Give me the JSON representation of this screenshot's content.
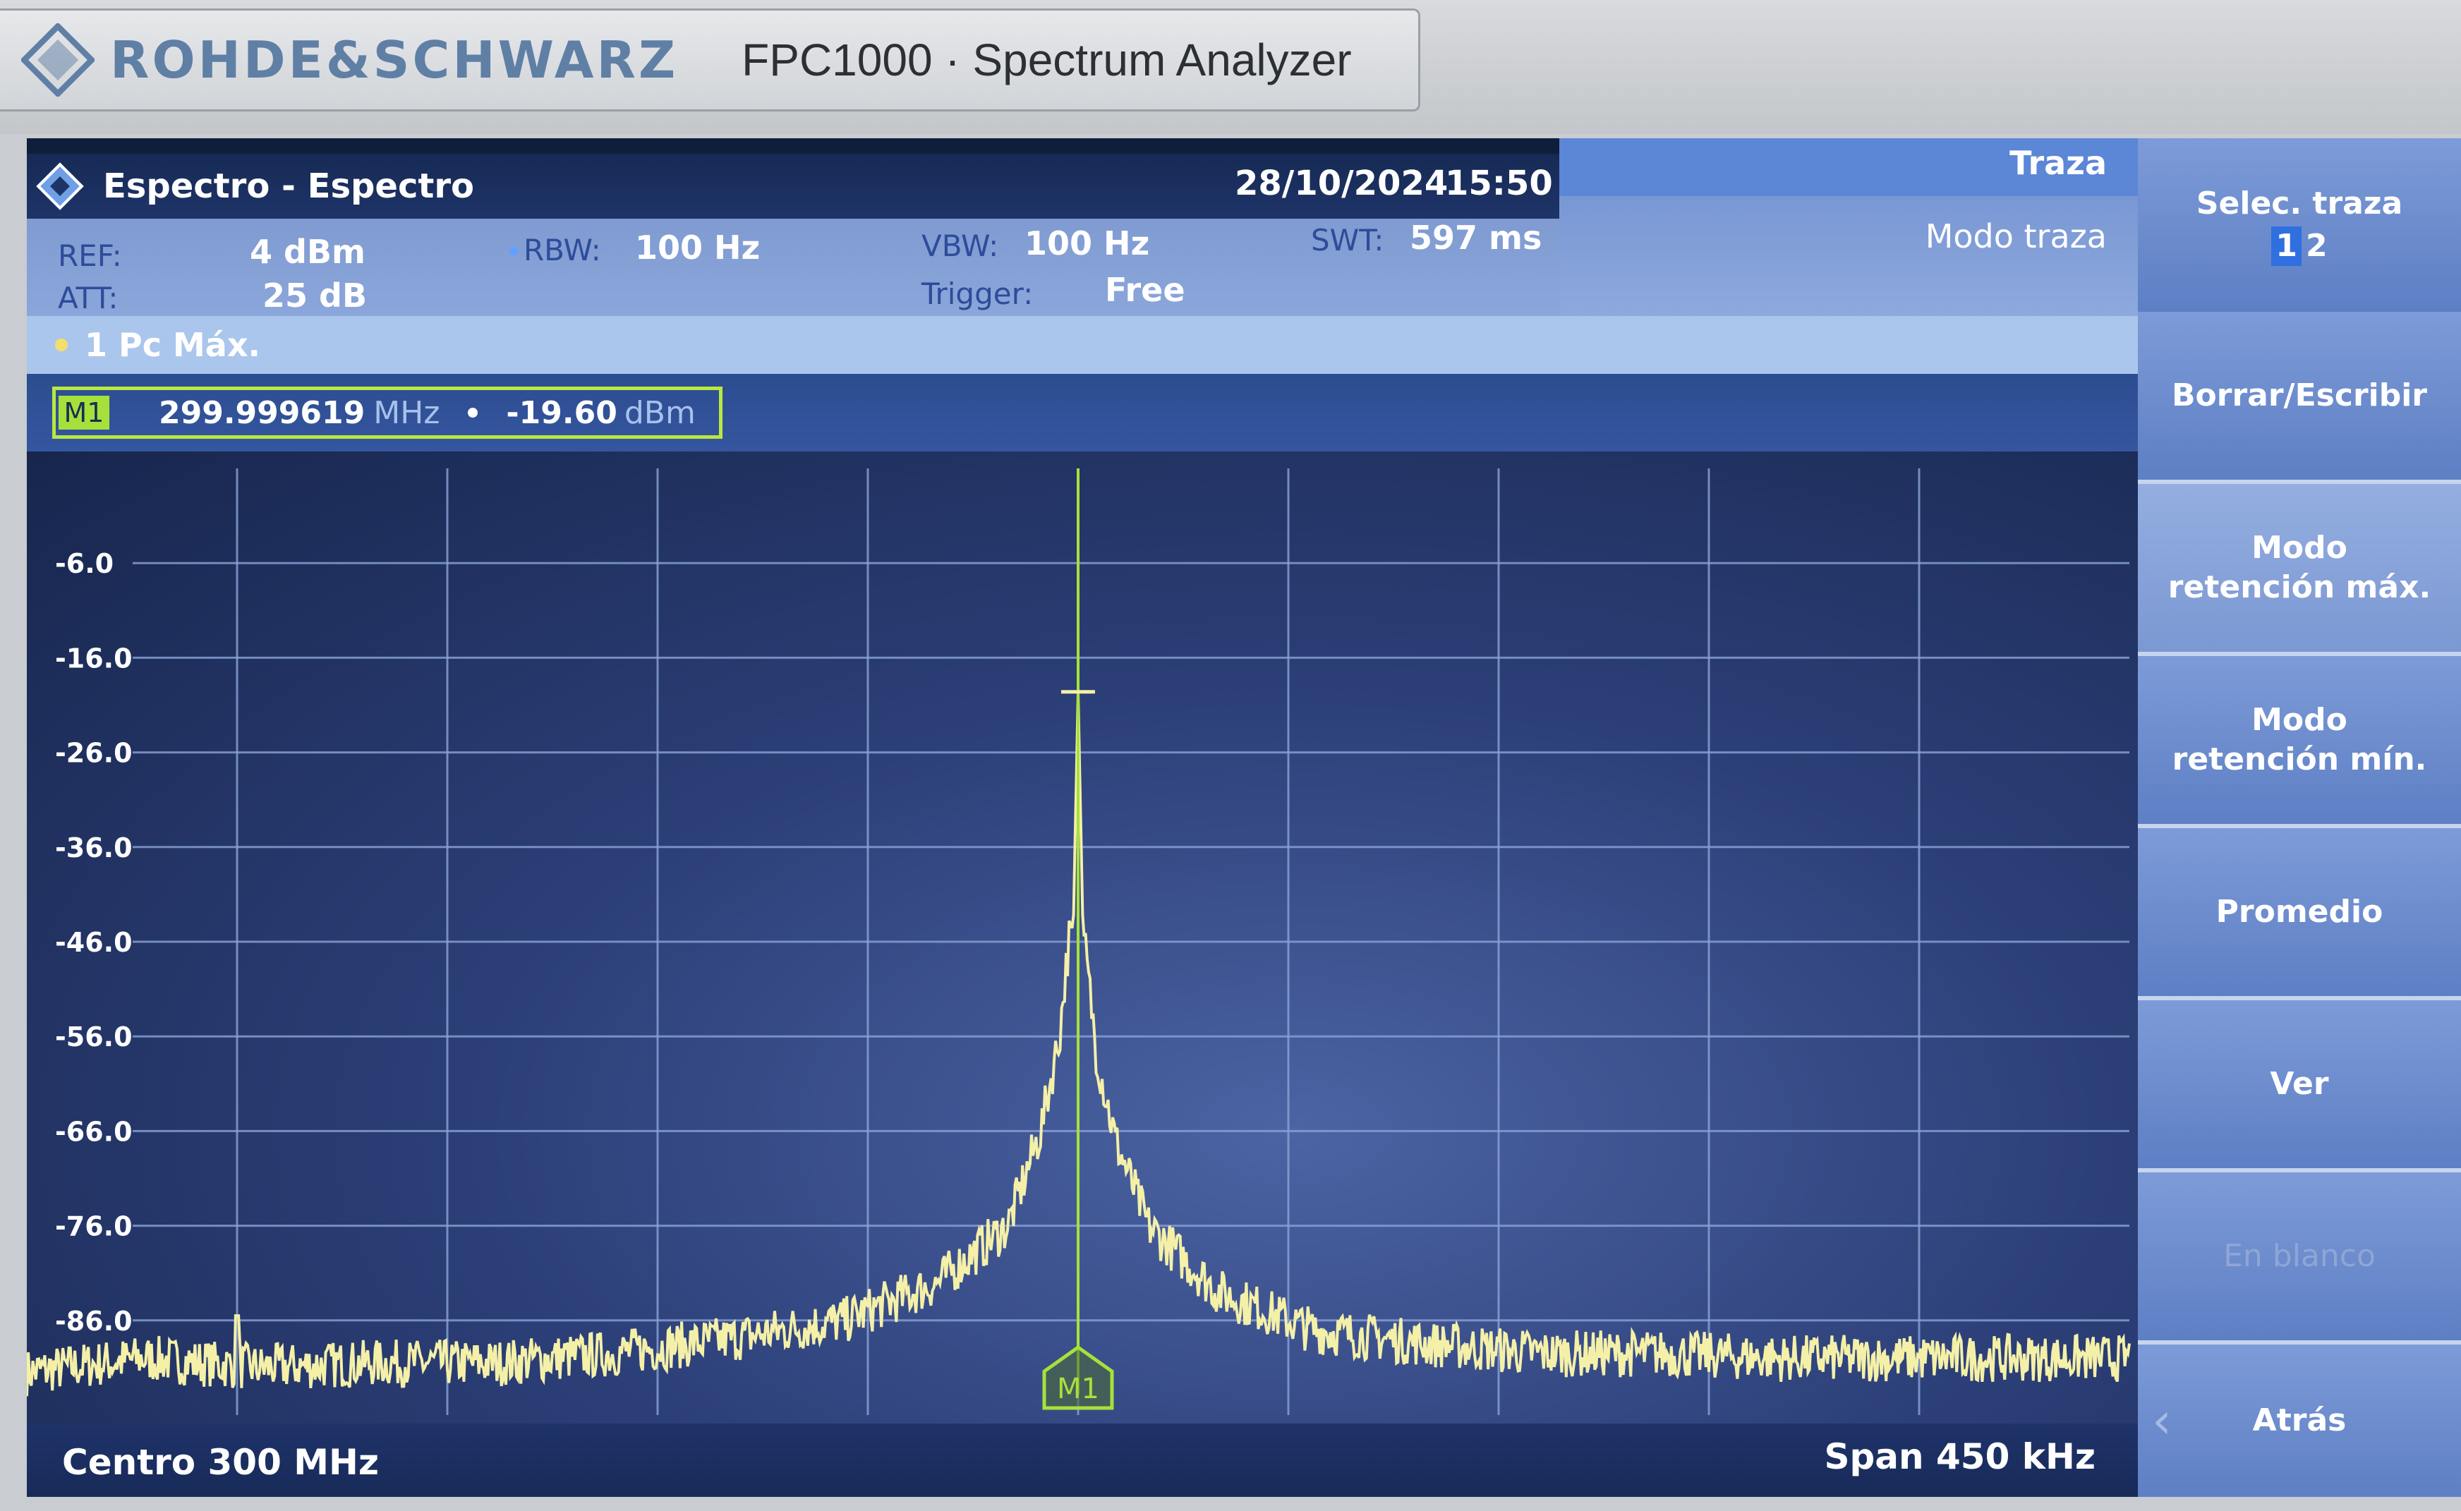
{
  "bezel": {
    "brand": "ROHDE&SCHWARZ",
    "model": "FPC1000 · Spectrum Analyzer"
  },
  "header": {
    "title": "Espectro - Espectro",
    "date": "28/10/2024",
    "time": "15:50"
  },
  "settings": {
    "ref_label": "REF:",
    "ref_value": "4 dBm",
    "att_label": "ATT:",
    "att_value": "25 dB",
    "rbw_label": "RBW:",
    "rbw_value": "100 Hz",
    "vbw_label": "VBW:",
    "vbw_value": "100 Hz",
    "trigger_label": "Trigger:",
    "trigger_value": "Free",
    "swt_label": "SWT:",
    "swt_value": "597 ms"
  },
  "trace_panel": {
    "title": "Traza",
    "mode_label": "Modo traza"
  },
  "trace_info": {
    "label": "1 Pc  Máx."
  },
  "marker": {
    "tag": "M1",
    "frequency": "299.999619",
    "frequency_unit": "MHz",
    "level": "-19.60",
    "level_unit": "dBm"
  },
  "footer": {
    "center": "Centro 300 MHz",
    "span": "Span 450 kHz"
  },
  "softkeys": {
    "select_trace": "Selec. traza",
    "trace_options": [
      "1",
      "2"
    ],
    "clear_write": "Borrar/Escribir",
    "max_hold_1": "Modo",
    "max_hold_2": "retención máx.",
    "min_hold_1": "Modo",
    "min_hold_2": "retención mín.",
    "average": "Promedio",
    "view": "Ver",
    "blank": "En blanco",
    "back": "Atrás"
  },
  "colors": {
    "trace": "#f4f0a8",
    "marker": "#a6e13b",
    "grid": "#8aa3d6"
  },
  "chart_data": {
    "type": "line",
    "y_tick_labels": [
      "-6.0",
      "-16.0",
      "-26.0",
      "-36.0",
      "-46.0",
      "-56.0",
      "-66.0",
      "-76.0",
      "-86.0"
    ],
    "ylim": [
      -96,
      4
    ],
    "xlim_khz_offset": [
      -225,
      225
    ],
    "grid": true,
    "series": [
      {
        "x": [
          -225,
          -200,
          -175,
          -150,
          -125,
          -100,
          -75,
          -50,
          -30,
          -15,
          -8,
          -4,
          -2,
          -1,
          0,
          1,
          2,
          4,
          8,
          15,
          30,
          50,
          75,
          100,
          125,
          150,
          175,
          200,
          225
        ],
        "values": [
          -91.5,
          -90,
          -91,
          -90.5,
          -90.5,
          -89.5,
          -88,
          -86,
          -82,
          -76,
          -66,
          -56,
          -46,
          -44,
          -19.6,
          -44,
          -49,
          -58,
          -67,
          -76,
          -83,
          -87,
          -88.5,
          -89.5,
          -89.5,
          -90,
          -90,
          -90,
          -90
        ]
      }
    ],
    "spurs": [
      {
        "x": -180,
        "value": -85.5
      }
    ],
    "marker": {
      "x": 0,
      "value": -19.6
    }
  }
}
